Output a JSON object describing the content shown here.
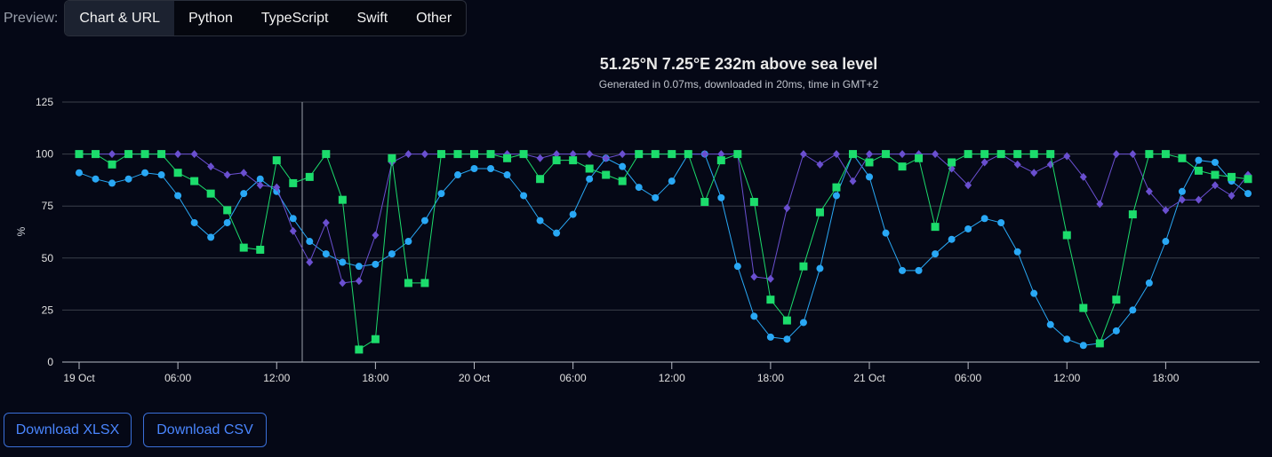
{
  "preview": {
    "label": "Preview:",
    "tabs": [
      {
        "label": "Chart & URL",
        "active": true
      },
      {
        "label": "Python",
        "active": false
      },
      {
        "label": "TypeScript",
        "active": false
      },
      {
        "label": "Swift",
        "active": false
      },
      {
        "label": "Other",
        "active": false
      }
    ]
  },
  "buttons": {
    "xlsx": "Download XLSX",
    "csv": "Download CSV"
  },
  "chart_data": {
    "type": "line",
    "title": "51.25°N 7.25°E 232m above sea level",
    "subtitle": "Generated in 0.07ms, downloaded in 20ms, time in GMT+2",
    "ylabel": "%",
    "ylim": [
      0,
      125
    ],
    "yticks": [
      0,
      25,
      50,
      75,
      100,
      125
    ],
    "x_start_hour": 0,
    "x_end_hour": 72,
    "xticks": [
      {
        "hour": 0,
        "label": "19 Oct",
        "bold": true
      },
      {
        "hour": 6,
        "label": "06:00"
      },
      {
        "hour": 12,
        "label": "12:00"
      },
      {
        "hour": 18,
        "label": "18:00"
      },
      {
        "hour": 24,
        "label": "20 Oct",
        "bold": true
      },
      {
        "hour": 30,
        "label": "06:00"
      },
      {
        "hour": 36,
        "label": "12:00"
      },
      {
        "hour": 42,
        "label": "18:00"
      },
      {
        "hour": 48,
        "label": "21 Oct",
        "bold": true
      },
      {
        "hour": 54,
        "label": "06:00"
      },
      {
        "hour": 60,
        "label": "12:00"
      },
      {
        "hour": 66,
        "label": "18:00"
      }
    ],
    "grid": true,
    "series": [
      {
        "color": "#29a8f5",
        "marker": "circle",
        "values": [
          91,
          88,
          86,
          88,
          91,
          90,
          80,
          67,
          60,
          67,
          81,
          88,
          82,
          69,
          58,
          52,
          48,
          46,
          47,
          52,
          58,
          68,
          81,
          90,
          93,
          93,
          90,
          80,
          68,
          62,
          71,
          88,
          98,
          94,
          84,
          79,
          87,
          100,
          100,
          79,
          46,
          22,
          12,
          11,
          19,
          45,
          80,
          100,
          89,
          62,
          44,
          44,
          52,
          59,
          64,
          69,
          67,
          53,
          33,
          18,
          11,
          8,
          9,
          15,
          25,
          38,
          58,
          82,
          97,
          96,
          87,
          81
        ]
      },
      {
        "color": "#6a4fd0",
        "marker": "diamond",
        "values": [
          100,
          100,
          100,
          100,
          100,
          100,
          100,
          100,
          94,
          90,
          91,
          85,
          84,
          63,
          48,
          67,
          38,
          39,
          61,
          96,
          100,
          100,
          100,
          100,
          100,
          100,
          100,
          100,
          98,
          100,
          100,
          100,
          98,
          100,
          100,
          100,
          100,
          100,
          100,
          100,
          100,
          41,
          40,
          74,
          100,
          95,
          100,
          87,
          100,
          100,
          100,
          100,
          100,
          93,
          85,
          96,
          100,
          95,
          91,
          95,
          99,
          89,
          76,
          100,
          100,
          82,
          73,
          78,
          78,
          85,
          80,
          90
        ]
      },
      {
        "color": "#1cdc6c",
        "marker": "square",
        "values": [
          100,
          100,
          95,
          100,
          100,
          100,
          91,
          87,
          81,
          73,
          55,
          54,
          97,
          86,
          89,
          100,
          78,
          6,
          11,
          98,
          38,
          38,
          100,
          100,
          100,
          100,
          98,
          100,
          88,
          97,
          97,
          93,
          90,
          87,
          100,
          100,
          100,
          100,
          77,
          97,
          100,
          77,
          30,
          20,
          46,
          72,
          84,
          100,
          96,
          100,
          94,
          98,
          65,
          96,
          100,
          100,
          100,
          100,
          100,
          100,
          61,
          26,
          9,
          30,
          71,
          100,
          100,
          98,
          92,
          90,
          89,
          88
        ]
      }
    ]
  }
}
